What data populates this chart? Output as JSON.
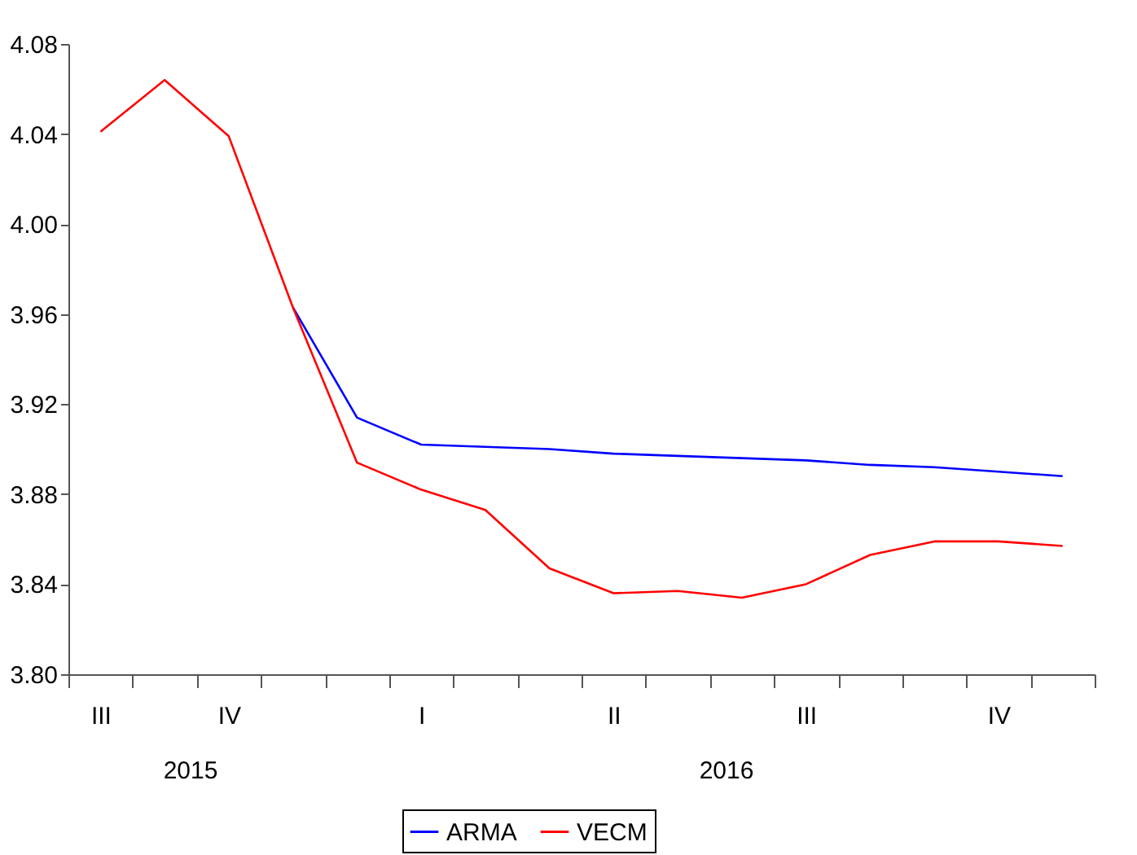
{
  "chart_data": {
    "type": "line",
    "categories": [
      "III",
      null,
      "IV",
      null,
      null,
      "I",
      null,
      null,
      "II",
      null,
      null,
      "III",
      null,
      null,
      "IV",
      null
    ],
    "series": [
      {
        "name": "ARMA",
        "color": "#0000ff",
        "values": [
          null,
          null,
          null,
          3.963,
          3.914,
          3.902,
          3.901,
          3.9,
          3.898,
          3.897,
          3.896,
          3.895,
          3.893,
          3.892,
          3.89,
          3.888
        ]
      },
      {
        "name": "VECM",
        "color": "#ff0000",
        "values": [
          4.041,
          4.064,
          4.039,
          3.963,
          3.894,
          3.882,
          3.873,
          3.847,
          3.836,
          3.837,
          3.834,
          3.84,
          3.853,
          3.859,
          3.859,
          3.857
        ]
      }
    ],
    "annotations": [
      "2015",
      "2016"
    ],
    "ylim": [
      3.8,
      4.08
    ],
    "yticks": [
      {
        "value": 3.8,
        "label": "3.80"
      },
      {
        "value": 3.84,
        "label": "3.84"
      },
      {
        "value": 3.88,
        "label": "3.88"
      },
      {
        "value": 3.92,
        "label": "3.92"
      },
      {
        "value": 3.96,
        "label": "3.96"
      },
      {
        "value": 4.0,
        "label": "4.00"
      },
      {
        "value": 4.04,
        "label": "4.04"
      },
      {
        "value": 4.08,
        "label": "4.08"
      }
    ],
    "grid": false,
    "legend": "bottom",
    "line_style": "solid",
    "marker": "none"
  }
}
